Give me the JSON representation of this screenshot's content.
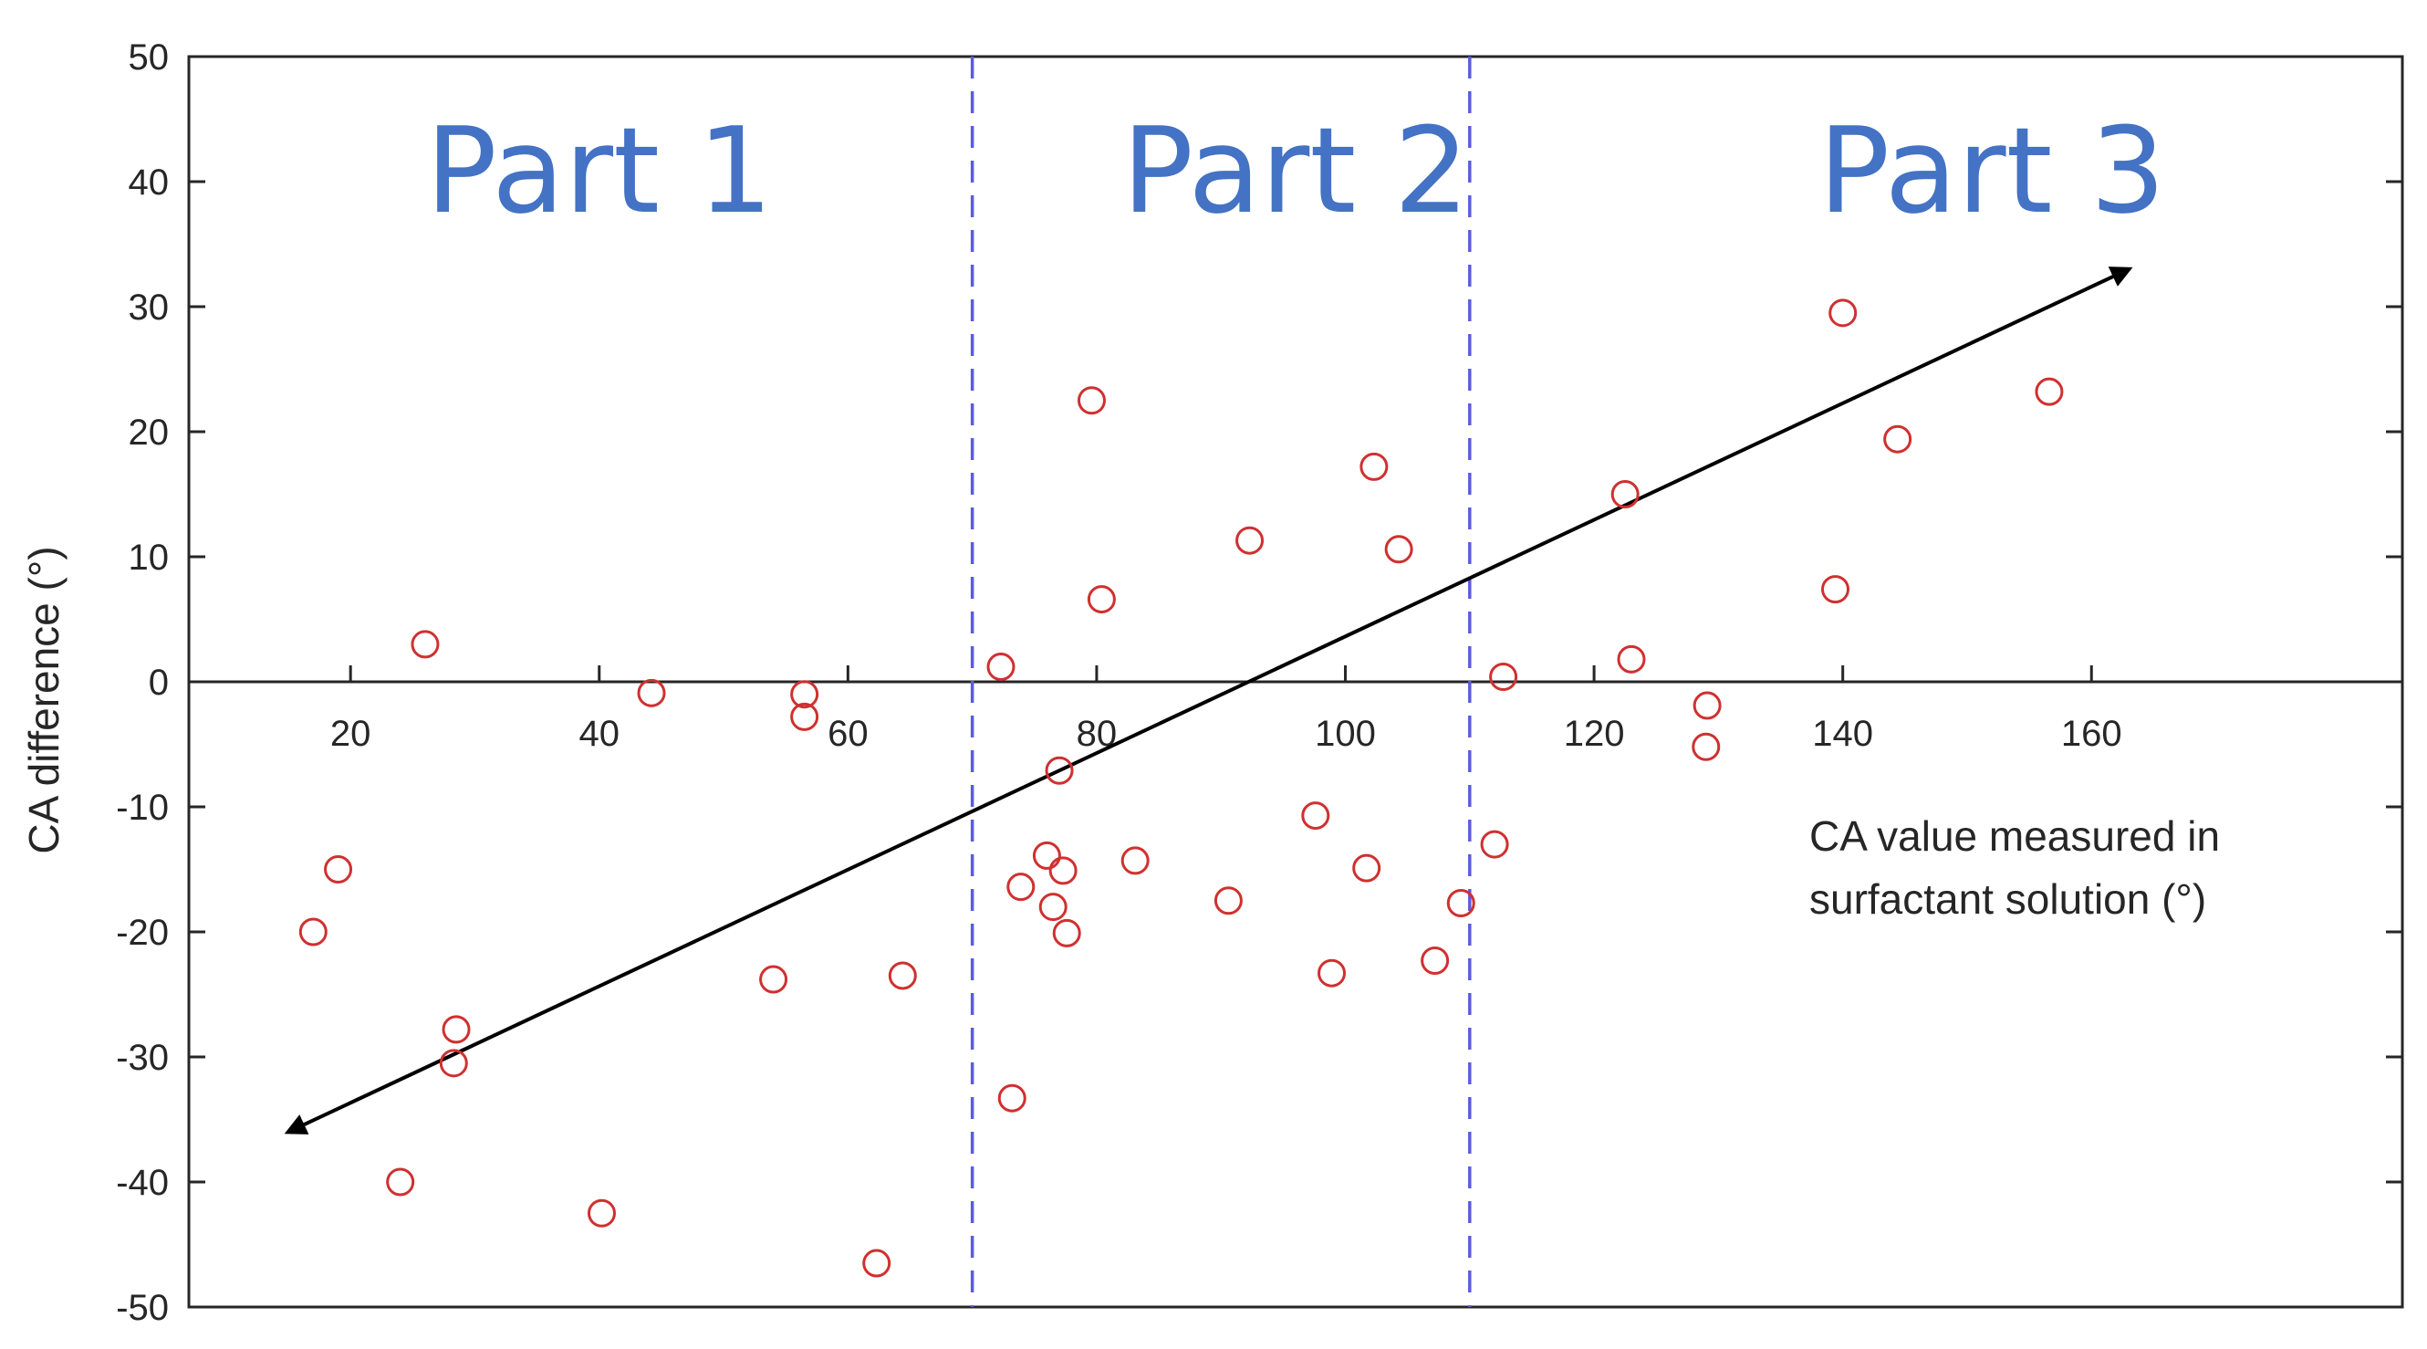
{
  "chart_data": {
    "type": "scatter",
    "title": "",
    "xlabel_lines": [
      "CA value measured in",
      "surfactant solution (°)"
    ],
    "ylabel": "CA difference (°)",
    "xlim": [
      7,
      185
    ],
    "ylim": [
      -50,
      50
    ],
    "x_ticks": [
      20,
      40,
      60,
      80,
      100,
      120,
      140,
      160
    ],
    "y_ticks": [
      -50,
      -40,
      -30,
      -20,
      -10,
      0,
      10,
      20,
      30,
      40,
      50
    ],
    "x_tick_labels": [
      "20",
      "40",
      "60",
      "80",
      "100",
      "120",
      "140",
      "160"
    ],
    "y_tick_labels": [
      "-50",
      "-40",
      "-30",
      "-20",
      "-10",
      "0",
      "10",
      "20",
      "30",
      "40",
      "50"
    ],
    "grid": false,
    "part_dividers_x": [
      70,
      110
    ],
    "part_labels": [
      {
        "text": "Part 1",
        "x": 40
      },
      {
        "text": "Part 2",
        "x": 96
      },
      {
        "text": "Part 3",
        "x": 152
      }
    ],
    "trend_arrow": {
      "start": [
        15,
        -36
      ],
      "end": [
        163,
        33
      ]
    },
    "series": [
      {
        "marker": "circle-open",
        "points": [
          [
            17,
            -20
          ],
          [
            19,
            -15
          ],
          [
            26,
            3
          ],
          [
            24,
            -40
          ],
          [
            28.5,
            -27.8
          ],
          [
            28.3,
            -30.5
          ],
          [
            40.2,
            -42.5
          ],
          [
            44.2,
            -0.9
          ],
          [
            54,
            -23.8
          ],
          [
            56.5,
            -1
          ],
          [
            56.5,
            -2.8
          ],
          [
            62.3,
            -46.5
          ],
          [
            64.4,
            -23.5
          ],
          [
            72.3,
            1.2
          ],
          [
            73.2,
            -33.3
          ],
          [
            73.9,
            -16.4
          ],
          [
            76,
            -13.9
          ],
          [
            76.5,
            -18
          ],
          [
            77,
            -7.1
          ],
          [
            77.3,
            -15.1
          ],
          [
            77.6,
            -20.1
          ],
          [
            79.6,
            22.5
          ],
          [
            80.4,
            6.6
          ],
          [
            83.1,
            -14.3
          ],
          [
            90.6,
            -17.5
          ],
          [
            92.3,
            11.3
          ],
          [
            97.6,
            -10.7
          ],
          [
            98.9,
            -23.3
          ],
          [
            101.7,
            -14.9
          ],
          [
            102.3,
            17.2
          ],
          [
            104.3,
            10.6
          ],
          [
            107.2,
            -22.3
          ],
          [
            109.3,
            -17.7
          ],
          [
            112,
            -13
          ],
          [
            112.7,
            0.4
          ],
          [
            122.5,
            15
          ],
          [
            123,
            1.8
          ],
          [
            129.1,
            -1.9
          ],
          [
            129,
            -5.2
          ],
          [
            139.4,
            7.4
          ],
          [
            140,
            29.5
          ],
          [
            144.4,
            19.4
          ],
          [
            156.6,
            23.2
          ]
        ]
      }
    ],
    "colors": {
      "marker": "#D03030",
      "divider": "#5B5BE0",
      "part_label": "#4472C4",
      "arrow": "#000000",
      "axis": "#262626"
    }
  }
}
